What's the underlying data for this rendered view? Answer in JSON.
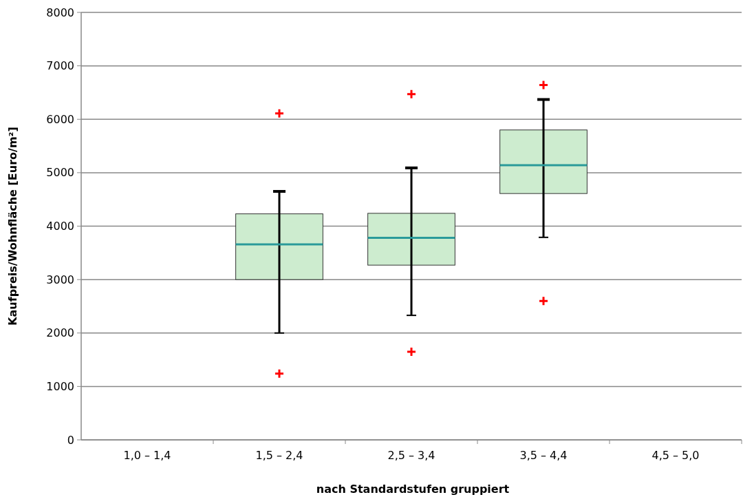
{
  "chart_data": {
    "type": "box",
    "xlabel": "nach Standardstufen gruppiert",
    "ylabel": "Kaufpreis/Wohnfläche [Euro/m²]",
    "categories": [
      "1,0 – 1,4",
      "1,5 – 2,4",
      "2,5 – 3,4",
      "3,5 – 4,4",
      "4,5 – 5,0"
    ],
    "boxes": [
      null,
      {
        "low": 2000,
        "q1": 3000,
        "median": 3660,
        "q3": 4230,
        "high": 4650,
        "outliers": [
          6110,
          1240
        ]
      },
      {
        "low": 2330,
        "q1": 3270,
        "median": 3780,
        "q3": 4240,
        "high": 5090,
        "outliers": [
          6470,
          1650
        ]
      },
      {
        "low": 3790,
        "q1": 4610,
        "median": 5140,
        "q3": 5800,
        "high": 6370,
        "outliers": [
          6640,
          2600
        ]
      },
      null
    ],
    "color": "#cdeccf",
    "ylim": [
      0,
      8000
    ],
    "yticks": [
      0,
      1000,
      2000,
      3000,
      4000,
      5000,
      6000,
      7000,
      8000
    ],
    "grid": "y"
  }
}
